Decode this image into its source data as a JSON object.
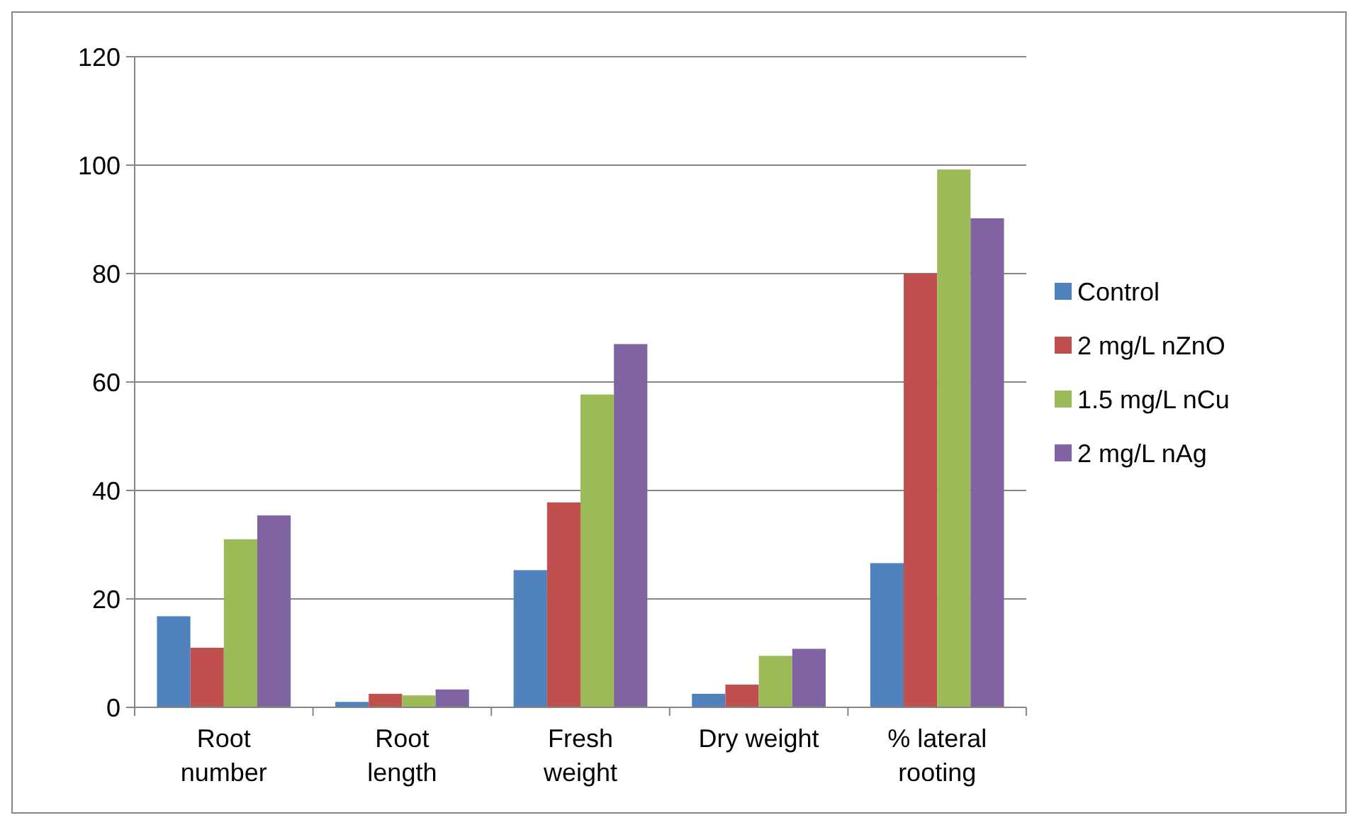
{
  "chart_data": {
    "type": "bar",
    "categories": [
      "Root number",
      "Root length",
      "Fresh weight",
      "Dry weight",
      "% lateral rooting"
    ],
    "series": [
      {
        "name": "Control",
        "color": "#4f81bd",
        "values": [
          16.8,
          1,
          25.3,
          2.5,
          26.6
        ]
      },
      {
        "name": "2 mg/L nZnO",
        "color": "#c0504d",
        "values": [
          11,
          2.5,
          37.8,
          4.2,
          80
        ]
      },
      {
        "name": "1.5 mg/L nCu",
        "color": "#9bbb59",
        "values": [
          31,
          2.2,
          57.7,
          9.5,
          99.2
        ]
      },
      {
        "name": "2 mg/L nAg",
        "color": "#8064a2",
        "values": [
          35.4,
          3.3,
          67,
          10.8,
          90.2
        ]
      }
    ],
    "ylim": [
      0,
      120
    ],
    "yticks": [
      0,
      20,
      40,
      60,
      80,
      100,
      120
    ],
    "grid": "y",
    "legend": "right"
  }
}
